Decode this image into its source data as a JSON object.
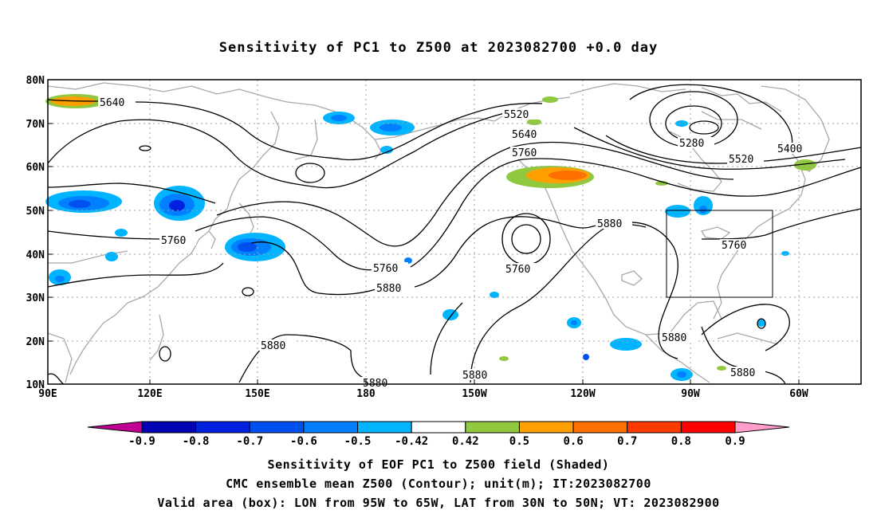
{
  "title": "Sensitivity of PC1 to Z500 at 2023082700 +0.0 day",
  "map": {
    "lat_labels": [
      "80N",
      "70N",
      "60N",
      "50N",
      "40N",
      "30N",
      "20N",
      "10N"
    ],
    "lon_labels": [
      "90E",
      "120E",
      "150E",
      "180",
      "150W",
      "120W",
      "90W",
      "60W"
    ],
    "contour_labels": [
      {
        "id": "c5640a",
        "text": "5640"
      },
      {
        "id": "c5520a",
        "text": "5520"
      },
      {
        "id": "c5640b",
        "text": "5640"
      },
      {
        "id": "c5760a",
        "text": "5760"
      },
      {
        "id": "c5280",
        "text": "5280"
      },
      {
        "id": "c5400",
        "text": "5400"
      },
      {
        "id": "c5520b",
        "text": "5520"
      },
      {
        "id": "c5760b",
        "text": "5760"
      },
      {
        "id": "c5760c",
        "text": "5760"
      },
      {
        "id": "c5760d",
        "text": "5760"
      },
      {
        "id": "c5880a",
        "text": "5880"
      },
      {
        "id": "c5880b",
        "text": "5880"
      },
      {
        "id": "c5760e",
        "text": "5760"
      },
      {
        "id": "c5880c",
        "text": "5880"
      },
      {
        "id": "c5880d",
        "text": "5880"
      },
      {
        "id": "c5880e",
        "text": "5880"
      },
      {
        "id": "c5880f",
        "text": "5880"
      },
      {
        "id": "c5880g",
        "text": "5880"
      }
    ],
    "valid_box": {
      "lon_from": "95W",
      "lon_to": "65W",
      "lat_from": "30N",
      "lat_to": "50N"
    }
  },
  "colorbar": {
    "labels": [
      "-0.9",
      "-0.8",
      "-0.7",
      "-0.6",
      "-0.5",
      "-0.42",
      "0.42",
      "0.5",
      "0.6",
      "0.7",
      "0.8",
      "0.9"
    ],
    "colors": [
      "#c00090",
      "#0000b4",
      "#0020e0",
      "#0050f0",
      "#0080ff",
      "#00b4ff",
      "#ffffff",
      "#90c840",
      "#ffa000",
      "#ff7000",
      "#ff3c00",
      "#ff0000",
      "#ff9ec8"
    ]
  },
  "footer": {
    "line1": "Sensitivity of EOF PC1 to Z500 field (Shaded)",
    "line2": "CMC ensemble mean Z500 (Contour); unit(m); IT:2023082700",
    "line3": "Valid area (box): LON from 95W to 65W, LAT from 30N to 50N; VT: 2023082900"
  }
}
